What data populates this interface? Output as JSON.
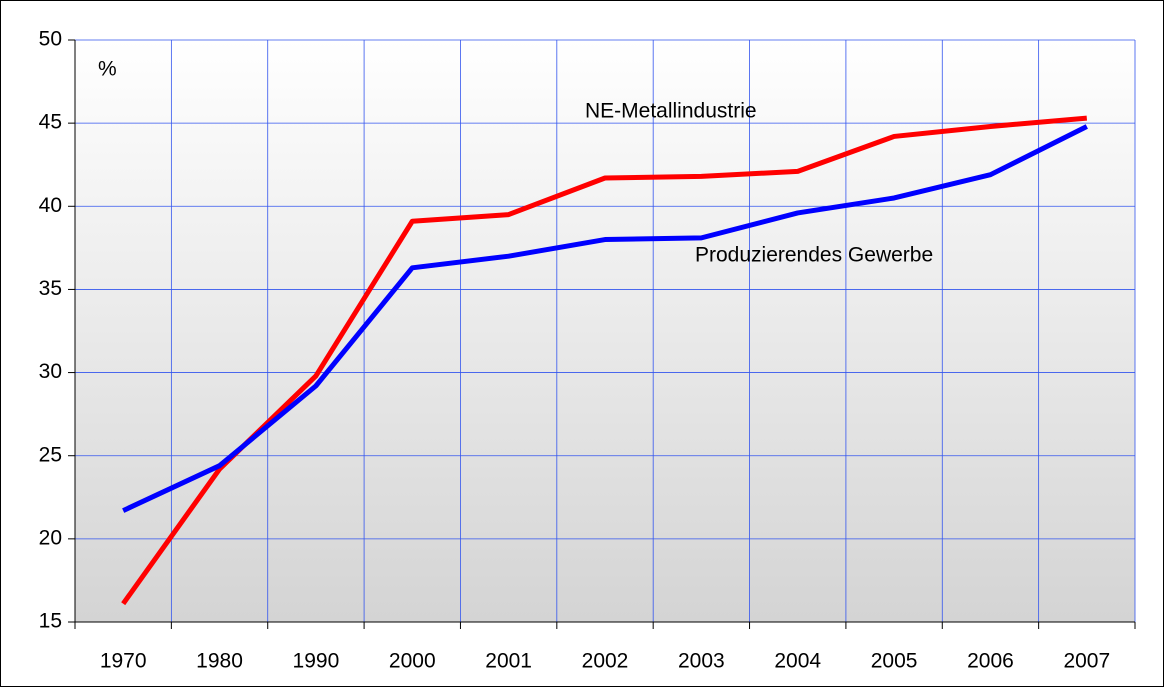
{
  "chart_data": {
    "type": "line",
    "y_label": "%",
    "categories": [
      "1970",
      "1980",
      "1990",
      "2000",
      "2001",
      "2002",
      "2003",
      "2004",
      "2005",
      "2006",
      "2007"
    ],
    "series": [
      {
        "name": "NE-Metallindustrie",
        "color": "#ff0000",
        "values": [
          16.1,
          24.2,
          29.8,
          39.1,
          39.5,
          41.7,
          41.8,
          42.1,
          44.2,
          44.8,
          45.3
        ]
      },
      {
        "name": "Produzierendes Gewerbe",
        "color": "#0000ff",
        "values": [
          21.7,
          24.4,
          29.2,
          36.3,
          37.0,
          38.0,
          38.1,
          39.6,
          40.5,
          41.9,
          44.8
        ]
      }
    ],
    "ylim": [
      15,
      50
    ],
    "yticks": [
      15,
      20,
      25,
      30,
      35,
      40,
      45,
      50
    ],
    "grid": true
  }
}
